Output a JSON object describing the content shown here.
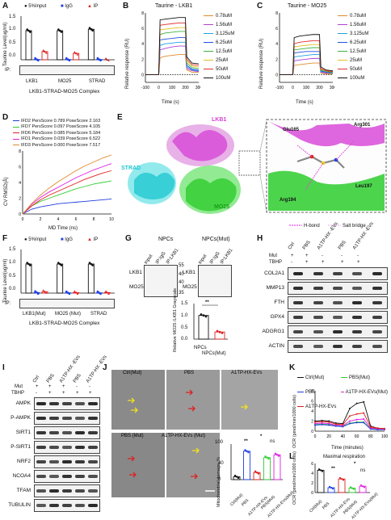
{
  "panels": {
    "A": {
      "label": "A",
      "legend": [
        "5%Input",
        "IgG",
        "IP"
      ],
      "ylabel": "Taurine Level(ug/ml)",
      "yticks": [
        "0.0",
        "0.5",
        "1.0",
        "1.5"
      ],
      "groups": [
        "LKB1",
        "MO25",
        "STRAD"
      ],
      "ip_label": "IP:",
      "xlabel": "LKB1-STRAD-MO25 Complex"
    },
    "B": {
      "label": "B",
      "title": "Taurine - LKB1",
      "ylabel": "Relative response (RU)",
      "xlabel": "Time (s)",
      "yticks": [
        "0",
        "2",
        "4",
        "6",
        "8"
      ],
      "xticks": [
        "-100",
        "0",
        "100",
        "200",
        "300"
      ],
      "legend": [
        "0.78uM",
        "1.56uM",
        "3.125uM",
        "6.25uM",
        "12.5uM",
        "25uM",
        "50uM",
        "100uM"
      ]
    },
    "C": {
      "label": "C",
      "title": "Taurine - MO25",
      "ylabel": "Relative response (RU)",
      "xlabel": "Time (s)",
      "yticks": [
        "0",
        "2",
        "4",
        "6",
        "8"
      ],
      "xticks": [
        "-100",
        "0",
        "100",
        "200",
        "300"
      ],
      "legend": [
        "0.78uM",
        "1.56uM",
        "3.125uM",
        "6.25uM",
        "12.5uM",
        "25uM",
        "50uM",
        "100uM"
      ]
    },
    "D": {
      "label": "D",
      "legend": [
        "IFD2 PersScore 0.789 PoseScore 2.163",
        "IFD7 PersScore 0.097 PoseScore 4.105",
        "IFD6 PersScore 0.085 PoseScore 5.184",
        "IFD1 PersScore 0.039 PoseScore 6.522",
        "IFD3 PersScore 0.000 PoseScore 7.517"
      ],
      "ylabel": "CV RMSD(Å)",
      "xlabel": "MD Time (ns)",
      "yticks": [
        "0",
        "2",
        "4",
        "6",
        "8"
      ],
      "xticks": [
        "0",
        "2",
        "4",
        "6",
        "8",
        "10"
      ]
    },
    "E": {
      "label": "E",
      "labels": {
        "lkb1": "LKB1",
        "strad": "STRAD",
        "mo25": "MO25",
        "glu165": "Glu165",
        "arg301": "Arg301",
        "arg194": "Arg194",
        "leu197": "Leu197",
        "hbond": "H-bond",
        "saltbridge": "Salt bridge"
      }
    },
    "F": {
      "label": "F",
      "legend": [
        "5%Input",
        "IgG",
        "IP"
      ],
      "ylabel": "Taurine Level(ug/ml)",
      "yticks": [
        "0.0",
        "0.5",
        "1.0",
        "1.5"
      ],
      "groups": [
        "LKB1(Mut)",
        "MO25 (Mut)",
        "STRAD"
      ],
      "ip_label": "IP:",
      "xlabel": "LKB1-STRAD-MO25 Complex"
    },
    "G": {
      "label": "G",
      "npcs": "NPCs",
      "npcs_mut": "NPCs(Mut)",
      "lanes": [
        "input",
        "IP:IgG",
        "IP:LKB1"
      ],
      "rows": [
        "LKB1",
        "MO25"
      ],
      "mw": [
        "55",
        "40",
        "40",
        "35"
      ],
      "quant_ylabel": "Relative MO25 /LKB1 Grayscale",
      "quant_yticks": [
        "0.0",
        "0.5",
        "1.0",
        "1.5"
      ],
      "quant_x": [
        "NPCs",
        "NPCs(Mut)"
      ],
      "sig": "**"
    },
    "H": {
      "label": "H",
      "lanes": [
        "Ctrl",
        "PBS",
        "A1TP-HX -EVs",
        "PBS",
        "A1TP-HX -EVs"
      ],
      "mut_label": "Mut",
      "mut": [
        "+",
        "+",
        "-",
        "-",
        "-"
      ],
      "tbhp_label": "TBHP",
      "tbhp": [
        "-",
        "+",
        "+",
        "+",
        "+"
      ],
      "rows": [
        "COL2A1",
        "MMP13",
        "FTH",
        "GPX4",
        "ADGRG1",
        "ACTIN"
      ]
    },
    "I": {
      "label": "I",
      "lanes": [
        "Ctrl",
        "PBS",
        "A1TP-HX -EVs",
        "PBS",
        "A1TP-HX -EVs"
      ],
      "mut_label": "Mut",
      "mut": [
        "+",
        "+",
        "+",
        "-",
        "-"
      ],
      "tbhp_label": "TBHP",
      "tbhp": [
        "-",
        "+",
        "+",
        "+",
        "+"
      ],
      "rows": [
        "AMPK",
        "P-AMPK",
        "SIRT1",
        "P-SIRT1",
        "NRF2",
        "NCOA4",
        "TFAM",
        "TUBULIN"
      ]
    },
    "J": {
      "label": "J",
      "tiles": [
        "Ctrl(Mut)",
        "PBS",
        "A1TP-HX-EVs",
        "PBS (Mut)",
        "A1TP-HX-EVs (Mut)"
      ],
      "ylabel": "Mitochondrial damage, %",
      "yticks": [
        "0",
        "20",
        "40",
        "60",
        "80",
        "100"
      ],
      "xcats": [
        "Ctrl(Mut)",
        "PBS",
        "A1TP-HX-EVs",
        "PBS(Mut)",
        "A1TP-HX-EVs(Mut)"
      ],
      "sig": [
        "**",
        "*",
        "ns"
      ]
    },
    "K": {
      "label": "K",
      "legend": [
        "Ctrl(Mut)",
        "PBS(Mut)",
        "PBS",
        "A1TP-HX-EVs(Mut)",
        "A1TP-HX-EVs"
      ],
      "ylabel": "OCR (pmol/min/1000 cells)",
      "xlabel": "Time (minutes)",
      "yticks": [
        "0",
        "2",
        "4",
        "6",
        "8"
      ],
      "xticks": [
        "0",
        "20",
        "40",
        "60",
        "80",
        "100"
      ]
    },
    "L": {
      "label": "L",
      "title": "Maximal respiration",
      "ylabel": "OCR (pmol/min/1000 cells)",
      "yticks": [
        "0",
        "2",
        "4",
        "6"
      ],
      "xcats": [
        "Ctrl(Mut)",
        "PBS",
        "A1TP-HX-EVs",
        "PBS(Mut)",
        "A1TP-HX-EVs(Mut)"
      ],
      "sig": [
        "**",
        "*",
        "ns"
      ]
    }
  },
  "colors": {
    "black": "#111111",
    "blue": "#1f3fe0",
    "red": "#e02020",
    "green": "#33cc33",
    "magenta": "#e020e0",
    "lkb1_pink": "#d640d6",
    "strad_cyan": "#22c8d0",
    "mo25_green": "#2ecc2e"
  },
  "chart_data": [
    {
      "panel": "A",
      "type": "bar",
      "categories": [
        "LKB1",
        "MO25",
        "STRAD"
      ],
      "series": [
        {
          "name": "5%Input",
          "values": [
            1.0,
            1.0,
            1.05
          ]
        },
        {
          "name": "IgG",
          "values": [
            0.01,
            0.01,
            0.01
          ]
        },
        {
          "name": "IP",
          "values": [
            0.28,
            0.22,
            0.0
          ]
        }
      ],
      "ylim": [
        0,
        1.5
      ]
    },
    {
      "panel": "B",
      "type": "line",
      "x": [
        -100,
        -50,
        0,
        10,
        50,
        100,
        150,
        200,
        210,
        250,
        300
      ],
      "series": [
        {
          "name": "0.78uM",
          "values": [
            0,
            0,
            0,
            2.2,
            2.4,
            2.5,
            2.6,
            2.6,
            0.6,
            0.3,
            0.3
          ]
        },
        {
          "name": "1.56uM",
          "values": [
            0,
            0,
            0,
            3.2,
            3.4,
            3.6,
            3.7,
            3.7,
            0.8,
            0.5,
            0.4
          ]
        },
        {
          "name": "3.125uM",
          "values": [
            0,
            0,
            0,
            3.8,
            4.0,
            4.1,
            4.2,
            4.2,
            1.0,
            0.6,
            0.5
          ]
        },
        {
          "name": "6.25uM",
          "values": [
            0,
            0,
            0,
            4.5,
            4.6,
            4.7,
            4.8,
            4.8,
            1.2,
            0.7,
            0.6
          ]
        },
        {
          "name": "12.5uM",
          "values": [
            0,
            0,
            0,
            5.2,
            5.4,
            5.5,
            5.6,
            5.6,
            1.5,
            0.9,
            0.8
          ]
        },
        {
          "name": "25uM",
          "values": [
            0,
            0,
            0,
            5.8,
            5.9,
            6.0,
            6.1,
            6.1,
            1.8,
            1.1,
            1.0
          ]
        },
        {
          "name": "50uM",
          "values": [
            0,
            0,
            0,
            6.4,
            6.5,
            6.6,
            6.7,
            6.7,
            2.0,
            1.3,
            1.2
          ]
        },
        {
          "name": "100uM",
          "values": [
            0,
            0,
            0,
            7.1,
            7.2,
            7.3,
            7.4,
            7.4,
            2.3,
            1.5,
            1.4
          ]
        }
      ],
      "xlim": [
        -100,
        300
      ],
      "ylim": [
        -1,
        8
      ]
    },
    {
      "panel": "C",
      "type": "line",
      "x": [
        -100,
        -50,
        0,
        10,
        50,
        100,
        150,
        200,
        210,
        250,
        300
      ],
      "series": [
        {
          "name": "0.78uM",
          "values": [
            0,
            0,
            0,
            1.2,
            1.3,
            1.4,
            1.5,
            1.5,
            0.2,
            0.1,
            0.1
          ]
        },
        {
          "name": "1.56uM",
          "values": [
            0,
            0,
            0,
            1.8,
            1.9,
            2.0,
            2.1,
            2.1,
            0.3,
            0.2,
            0.2
          ]
        },
        {
          "name": "3.125uM",
          "values": [
            0,
            0,
            0,
            2.3,
            2.4,
            2.5,
            2.6,
            2.6,
            0.4,
            0.3,
            0.2
          ]
        },
        {
          "name": "6.25uM",
          "values": [
            0,
            0,
            0,
            2.8,
            2.9,
            3.0,
            3.0,
            3.0,
            0.5,
            0.3,
            0.3
          ]
        },
        {
          "name": "12.5uM",
          "values": [
            0,
            0,
            0,
            3.2,
            3.3,
            3.4,
            3.5,
            3.5,
            0.6,
            0.4,
            0.3
          ]
        },
        {
          "name": "25uM",
          "values": [
            0,
            0,
            0,
            3.6,
            3.7,
            3.8,
            3.9,
            3.9,
            0.7,
            0.5,
            0.4
          ]
        },
        {
          "name": "50uM",
          "values": [
            0,
            0,
            0,
            4.0,
            4.2,
            4.3,
            4.4,
            4.4,
            0.8,
            0.5,
            0.4
          ]
        },
        {
          "name": "100uM",
          "values": [
            0,
            0,
            0,
            4.8,
            5.0,
            5.1,
            5.2,
            5.2,
            1.0,
            0.6,
            0.5
          ]
        }
      ],
      "xlim": [
        -100,
        300
      ],
      "ylim": [
        -1,
        8
      ]
    },
    {
      "panel": "D",
      "type": "line",
      "x": [
        0,
        1,
        2,
        3,
        4,
        5,
        6,
        7,
        8,
        9,
        10
      ],
      "series": [
        {
          "name": "IFD2 PersScore 0.789 PoseScore 2.163",
          "values": [
            0,
            0.6,
            0.9,
            1.1,
            1.3,
            1.4,
            1.5,
            1.6,
            1.7,
            1.8,
            1.9
          ]
        },
        {
          "name": "IFD7 PersScore 0.097 PoseScore 4.105",
          "values": [
            0,
            1.0,
            1.6,
            2.0,
            2.4,
            2.8,
            3.2,
            3.5,
            3.8,
            4.0,
            4.2
          ]
        },
        {
          "name": "IFD6 PersScore 0.085 PoseScore 5.184",
          "values": [
            0,
            1.0,
            1.8,
            2.4,
            2.9,
            3.4,
            3.9,
            4.4,
            4.8,
            5.2,
            5.5
          ]
        },
        {
          "name": "IFD1 PersScore 0.039 PoseScore 6.522",
          "values": [
            0,
            1.2,
            2.1,
            2.8,
            3.4,
            4.0,
            4.6,
            5.1,
            5.6,
            6.0,
            6.4
          ]
        },
        {
          "name": "IFD3 PersScore 0.000 PoseScore 7.517",
          "values": [
            0,
            1.3,
            2.4,
            3.3,
            4.1,
            4.8,
            5.5,
            6.1,
            6.6,
            7.1,
            7.5
          ]
        }
      ],
      "xlim": [
        0,
        10
      ],
      "ylim": [
        0,
        8
      ]
    },
    {
      "panel": "F",
      "type": "bar",
      "categories": [
        "LKB1(Mut)",
        "MO25 (Mut)",
        "STRAD"
      ],
      "series": [
        {
          "name": "5%Input",
          "values": [
            1.0,
            1.0,
            1.0
          ]
        },
        {
          "name": "IgG",
          "values": [
            0.02,
            0.01,
            0.01
          ]
        },
        {
          "name": "IP",
          "values": [
            0.05,
            0.02,
            0.02
          ]
        }
      ],
      "ylim": [
        0,
        1.5
      ]
    },
    {
      "panel": "G",
      "type": "bar",
      "categories": [
        "NPCs",
        "NPCs(Mut)"
      ],
      "values": [
        1.0,
        0.3
      ],
      "ylim": [
        0,
        1.5
      ]
    },
    {
      "panel": "J",
      "type": "bar",
      "categories": [
        "Ctrl(Mut)",
        "PBS",
        "A1TP-HX-EVs",
        "PBS(Mut)",
        "A1TP-HX-EVs(Mut)"
      ],
      "values": [
        8,
        80,
        20,
        62,
        70
      ],
      "ylim": [
        0,
        100
      ]
    },
    {
      "panel": "K",
      "type": "line",
      "x": [
        0,
        10,
        20,
        30,
        40,
        50,
        60,
        70,
        80,
        90,
        100
      ],
      "series": [
        {
          "name": "Ctrl(Mut)",
          "values": [
            2.0,
            2.1,
            2.0,
            1.6,
            1.5,
            4.5,
            5.5,
            5.8,
            1.0,
            0.6,
            0.5
          ]
        },
        {
          "name": "PBS(Mut)",
          "values": [
            1.3,
            1.4,
            1.3,
            1.1,
            1.0,
            1.6,
            1.8,
            1.8,
            0.5,
            0.4,
            0.4
          ]
        },
        {
          "name": "PBS",
          "values": [
            1.2,
            1.3,
            1.2,
            1.0,
            0.9,
            1.5,
            1.7,
            1.7,
            0.4,
            0.3,
            0.3
          ]
        },
        {
          "name": "A1TP-HX-EVs(Mut)",
          "values": [
            1.5,
            1.6,
            1.5,
            1.2,
            1.1,
            2.0,
            2.3,
            2.4,
            0.6,
            0.5,
            0.4
          ]
        },
        {
          "name": "A1TP-HX-EVs",
          "values": [
            1.8,
            1.9,
            1.8,
            1.4,
            1.3,
            3.0,
            3.4,
            3.6,
            0.8,
            0.6,
            0.5
          ]
        }
      ],
      "xlim": [
        0,
        100
      ],
      "ylim": [
        0,
        8
      ]
    },
    {
      "panel": "L",
      "type": "bar",
      "categories": [
        "Ctrl(Mut)",
        "PBS",
        "A1TP-HX-EVs",
        "PBS(Mut)",
        "A1TP-HX-EVs(Mut)"
      ],
      "values": [
        4.6,
        1.0,
        2.8,
        0.9,
        1.3
      ],
      "ylim": [
        0,
        6
      ]
    }
  ]
}
